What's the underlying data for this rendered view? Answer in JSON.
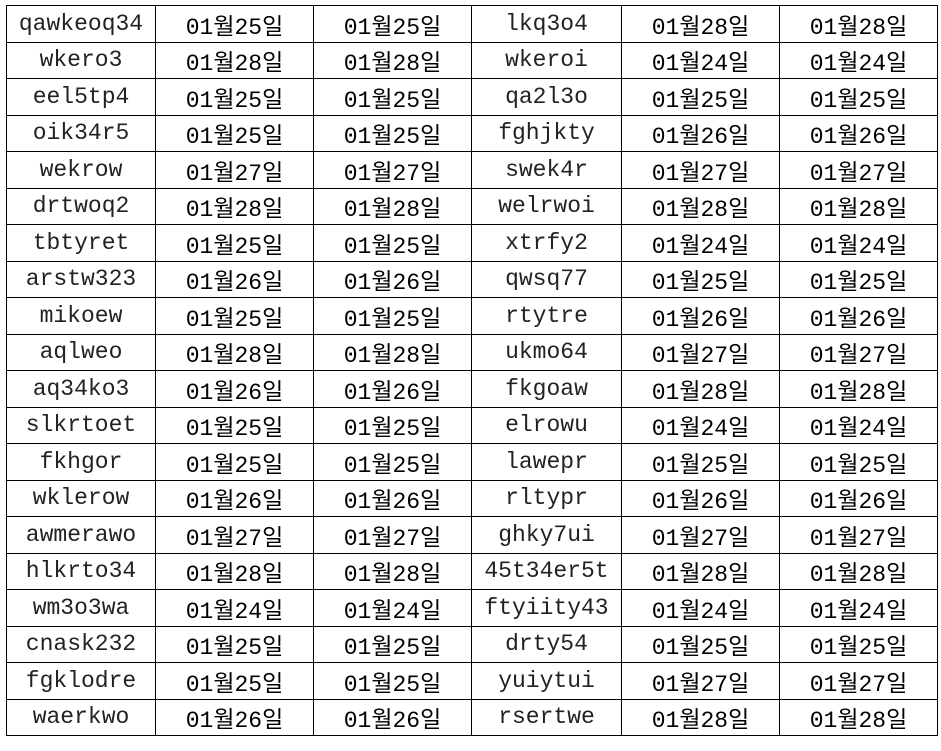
{
  "rows": [
    [
      "qawkeoq34",
      "01월25일",
      "01월25일",
      "lkq3o4",
      "01월28일",
      "01월28일"
    ],
    [
      "wkero3",
      "01월28일",
      "01월28일",
      "wkeroi",
      "01월24일",
      "01월24일"
    ],
    [
      "eel5tp4",
      "01월25일",
      "01월25일",
      "qa2l3o",
      "01월25일",
      "01월25일"
    ],
    [
      "oik34r5",
      "01월25일",
      "01월25일",
      "fghjkty",
      "01월26일",
      "01월26일"
    ],
    [
      "wekrow",
      "01월27일",
      "01월27일",
      "swek4r",
      "01월27일",
      "01월27일"
    ],
    [
      "drtwoq2",
      "01월28일",
      "01월28일",
      "welrwoi",
      "01월28일",
      "01월28일"
    ],
    [
      "tbtyret",
      "01월25일",
      "01월25일",
      "xtrfy2",
      "01월24일",
      "01월24일"
    ],
    [
      "arstw323",
      "01월26일",
      "01월26일",
      "qwsq77",
      "01월25일",
      "01월25일"
    ],
    [
      "mikoew",
      "01월25일",
      "01월25일",
      "rtytre",
      "01월26일",
      "01월26일"
    ],
    [
      "aqlweo",
      "01월28일",
      "01월28일",
      "ukmo64",
      "01월27일",
      "01월27일"
    ],
    [
      "aq34ko3",
      "01월26일",
      "01월26일",
      "fkgoaw",
      "01월28일",
      "01월28일"
    ],
    [
      "slkrtoet",
      "01월25일",
      "01월25일",
      "elrowu",
      "01월24일",
      "01월24일"
    ],
    [
      "fkhgor",
      "01월25일",
      "01월25일",
      "lawepr",
      "01월25일",
      "01월25일"
    ],
    [
      "wklerow",
      "01월26일",
      "01월26일",
      "rltypr",
      "01월26일",
      "01월26일"
    ],
    [
      "awmerawo",
      "01월27일",
      "01월27일",
      "ghky7ui",
      "01월27일",
      "01월27일"
    ],
    [
      "hlkrto34",
      "01월28일",
      "01월28일",
      "45t34er5t",
      "01월28일",
      "01월28일"
    ],
    [
      "wm3o3wa",
      "01월24일",
      "01월24일",
      "ftyiity43",
      "01월24일",
      "01월24일"
    ],
    [
      "cnask232",
      "01월25일",
      "01월25일",
      "drty54",
      "01월25일",
      "01월25일"
    ],
    [
      "fgklodre",
      "01월25일",
      "01월25일",
      "yuiytui",
      "01월27일",
      "01월27일"
    ],
    [
      "waerkwo",
      "01월26일",
      "01월26일",
      "rsertwe",
      "01월28일",
      "01월28일"
    ]
  ]
}
